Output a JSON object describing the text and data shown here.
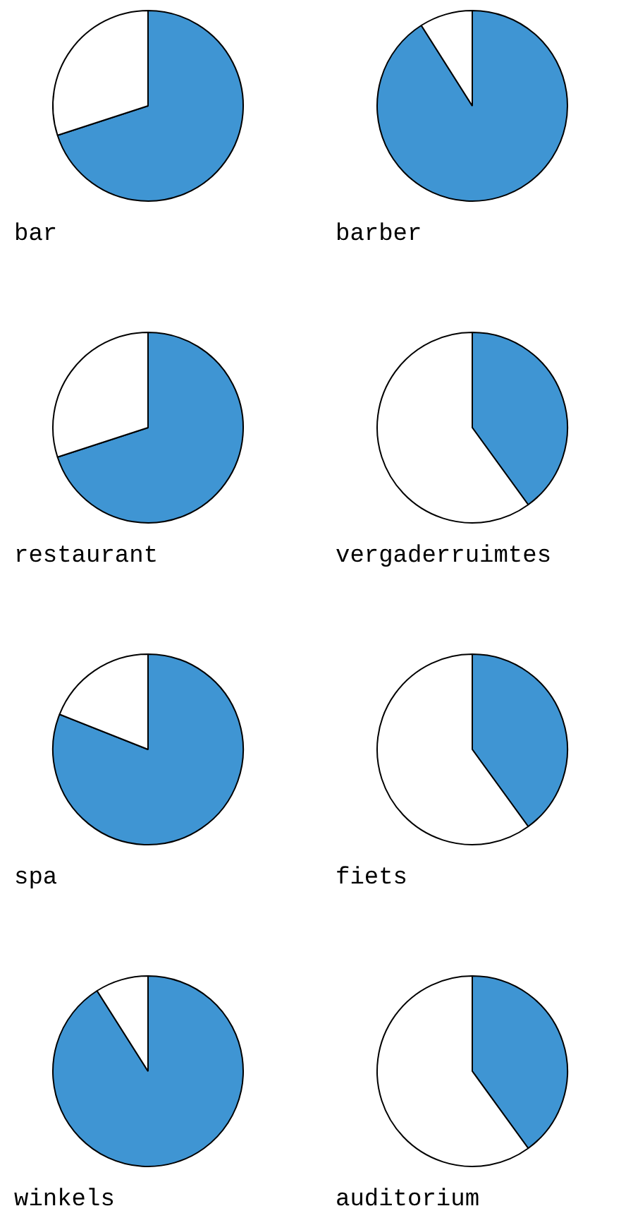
{
  "chart_data": [
    {
      "type": "pie",
      "title": "bar",
      "categories": [
        null,
        null
      ],
      "values": [
        70,
        30
      ],
      "colors": [
        "#3f95d3",
        "#ffffff"
      ]
    },
    {
      "type": "pie",
      "title": "barber",
      "categories": [
        null,
        null
      ],
      "values": [
        91,
        9
      ],
      "colors": [
        "#3f95d3",
        "#ffffff"
      ]
    },
    {
      "type": "pie",
      "title": "restaurant",
      "categories": [
        null,
        null
      ],
      "values": [
        70,
        30
      ],
      "colors": [
        "#3f95d3",
        "#ffffff"
      ]
    },
    {
      "type": "pie",
      "title": "vergaderruimtes",
      "categories": [
        null,
        null
      ],
      "values": [
        40,
        60
      ],
      "colors": [
        "#3f95d3",
        "#ffffff"
      ]
    },
    {
      "type": "pie",
      "title": "spa",
      "categories": [
        null,
        null
      ],
      "values": [
        81,
        19
      ],
      "colors": [
        "#3f95d3",
        "#ffffff"
      ]
    },
    {
      "type": "pie",
      "title": "fiets",
      "categories": [
        null,
        null
      ],
      "values": [
        40,
        60
      ],
      "colors": [
        "#3f95d3",
        "#ffffff"
      ]
    },
    {
      "type": "pie",
      "title": "winkels",
      "categories": [
        null,
        null
      ],
      "values": [
        91,
        9
      ],
      "colors": [
        "#3f95d3",
        "#ffffff"
      ]
    },
    {
      "type": "pie",
      "title": "auditorium",
      "categories": [
        null,
        null
      ],
      "values": [
        40,
        60
      ],
      "colors": [
        "#3f95d3",
        "#ffffff"
      ]
    }
  ]
}
